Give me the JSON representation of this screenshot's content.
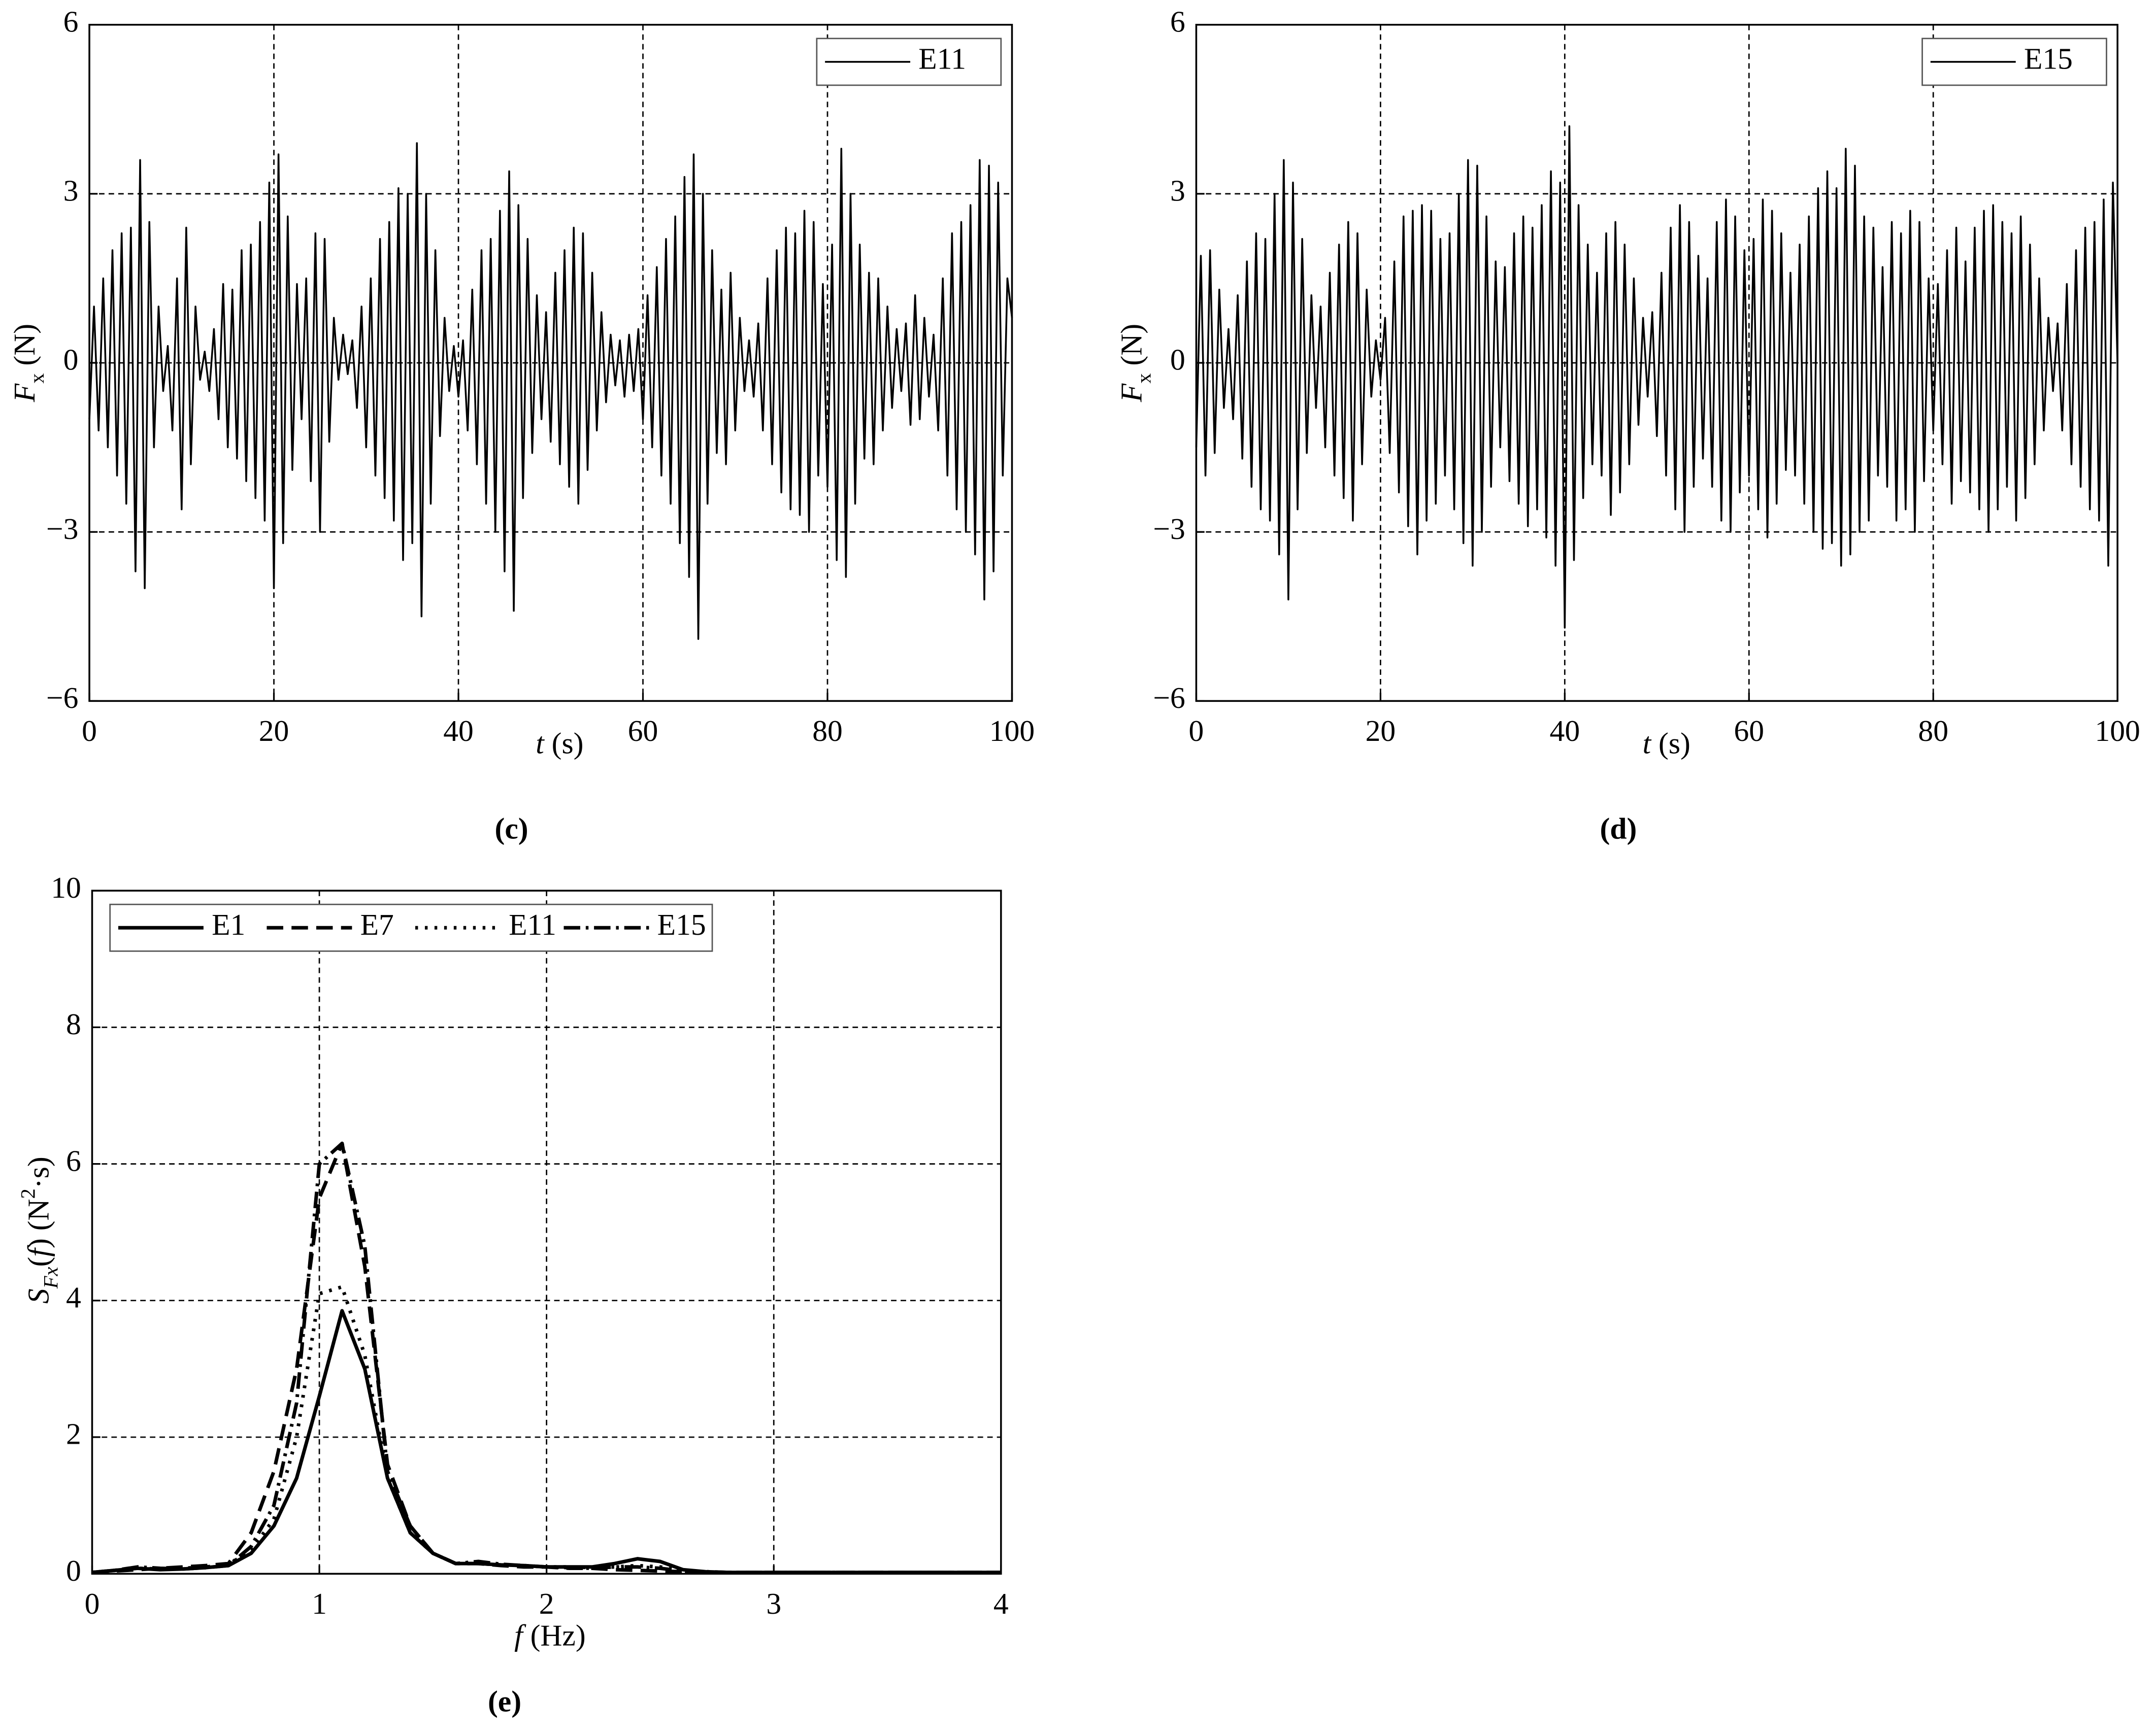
{
  "chart_data": [
    {
      "type": "line",
      "label": "(c)",
      "xlabel": [
        "t",
        " (s)"
      ],
      "ylabel": [
        "F",
        "x",
        " (N)"
      ],
      "xlim": [
        0,
        100
      ],
      "ylim": [
        -6,
        6
      ],
      "xticks": [
        0,
        20,
        40,
        60,
        80,
        100
      ],
      "yticks": [
        {
          "value": -6,
          "label": "−6"
        },
        {
          "value": -3,
          "label": "−3"
        },
        0,
        3,
        6
      ],
      "grid": true,
      "legend": "upper right",
      "x": [
        0,
        0.5,
        1,
        1.5,
        2,
        2.5,
        3,
        3.5,
        4,
        4.5,
        5,
        5.5,
        6,
        6.5,
        7,
        7.5,
        8,
        8.5,
        9,
        9.5,
        10,
        10.5,
        11,
        11.5,
        12,
        12.5,
        13,
        13.5,
        14,
        14.5,
        15,
        15.5,
        16,
        16.5,
        17,
        17.5,
        18,
        18.5,
        19,
        19.5,
        20,
        20.5,
        21,
        21.5,
        22,
        22.5,
        23,
        23.5,
        24,
        24.5,
        25,
        25.5,
        26,
        26.5,
        27,
        27.5,
        28,
        28.5,
        29,
        29.5,
        30,
        30.5,
        31,
        31.5,
        32,
        32.5,
        33,
        33.5,
        34,
        34.5,
        35,
        35.5,
        36,
        36.5,
        37,
        37.5,
        38,
        38.5,
        39,
        39.5,
        40,
        40.5,
        41,
        41.5,
        42,
        42.5,
        43,
        43.5,
        44,
        44.5,
        45,
        45.5,
        46,
        46.5,
        47,
        47.5,
        48,
        48.5,
        49,
        49.5,
        50,
        50.5,
        51,
        51.5,
        52,
        52.5,
        53,
        53.5,
        54,
        54.5,
        55,
        55.5,
        56,
        56.5,
        57,
        57.5,
        58,
        58.5,
        59,
        59.5,
        60,
        60.5,
        61,
        61.5,
        62,
        62.5,
        63,
        63.5,
        64,
        64.5,
        65,
        65.5,
        66,
        66.5,
        67,
        67.5,
        68,
        68.5,
        69,
        69.5,
        70,
        70.5,
        71,
        71.5,
        72,
        72.5,
        73,
        73.5,
        74,
        74.5,
        75,
        75.5,
        76,
        76.5,
        77,
        77.5,
        78,
        78.5,
        79,
        79.5,
        80,
        80.5,
        81,
        81.5,
        82,
        82.5,
        83,
        83.5,
        84,
        84.5,
        85,
        85.5,
        86,
        86.5,
        87,
        87.5,
        88,
        88.5,
        89,
        89.5,
        90,
        90.5,
        91,
        91.5,
        92,
        92.5,
        93,
        93.5,
        94,
        94.5,
        95,
        95.5,
        96,
        96.5,
        97,
        97.5,
        98,
        98.5,
        99,
        99.5,
        100
      ],
      "series": [
        {
          "name": "E11",
          "color": "#000000",
          "linestyle": "solid",
          "values": [
            -1,
            1,
            -1.2,
            1.5,
            -1.5,
            2,
            -2,
            2.3,
            -2.5,
            2.4,
            -3.7,
            3.6,
            -4,
            2.5,
            -1.5,
            1,
            -0.5,
            0.3,
            -1.2,
            1.5,
            -2.6,
            2.4,
            -1.8,
            1,
            -0.3,
            0.2,
            -0.5,
            0.6,
            -1,
            1.4,
            -1.5,
            1.3,
            -1.7,
            2,
            -2.1,
            2.1,
            -2.4,
            2.5,
            -2.8,
            3.2,
            -4,
            3.7,
            -3.2,
            2.6,
            -1.9,
            1.4,
            -1,
            1.5,
            -2.1,
            2.3,
            -3,
            2.2,
            -1.4,
            0.8,
            -0.3,
            0.5,
            -0.2,
            0.4,
            -0.8,
            1,
            -1.5,
            1.5,
            -2,
            2.2,
            -2.4,
            2.5,
            -2.8,
            3.1,
            -3.5,
            3,
            -3.2,
            3.9,
            -4.5,
            3,
            -2.5,
            2,
            -1.3,
            0.8,
            -0.5,
            0.3,
            -0.6,
            0.4,
            -1.2,
            1.3,
            -1.8,
            2,
            -2.5,
            2.2,
            -3,
            2.7,
            -3.7,
            3.4,
            -4.4,
            2.8,
            -2.4,
            2.2,
            -1.6,
            1.2,
            -1,
            0.9,
            -1.4,
            1.6,
            -1.8,
            2,
            -2.2,
            2.4,
            -2.5,
            2.3,
            -1.9,
            1.6,
            -1.2,
            0.9,
            -0.7,
            0.5,
            -0.4,
            0.4,
            -0.6,
            0.5,
            -0.5,
            0.6,
            -1,
            1.2,
            -1.5,
            1.7,
            -2,
            2.2,
            -2.5,
            2.6,
            -3.2,
            3.3,
            -3.8,
            3.7,
            -4.9,
            3,
            -2.5,
            2,
            -1.6,
            1.3,
            -1.8,
            1.6,
            -1.2,
            0.8,
            -0.5,
            0.4,
            -0.6,
            0.7,
            -1.2,
            1.5,
            -1.8,
            2,
            -2.3,
            2.4,
            -2.6,
            2.3,
            -2.7,
            2.7,
            -3,
            2.5,
            -2,
            1.4,
            -2.2,
            2.1,
            -3.5,
            3.8,
            -3.8,
            3,
            -2.5,
            2.1,
            -1.7,
            1.6,
            -1.8,
            1.5,
            -1.2,
            1,
            -0.8,
            0.6,
            -0.5,
            0.7,
            -1.1,
            1.2,
            -1,
            0.8,
            -0.6,
            0.5,
            -1.2,
            1.5,
            -2,
            2.3,
            -2.6,
            2.5,
            -3,
            2.8,
            -3.4,
            3.6,
            -4.2,
            3.5,
            -3.7,
            3.2,
            -2,
            1.5,
            0.8
          ]
        }
      ]
    },
    {
      "type": "line",
      "label": "(d)",
      "xlabel": [
        "t",
        " (s)"
      ],
      "ylabel": [
        "F",
        "x",
        " (N)"
      ],
      "xlim": [
        0,
        100
      ],
      "ylim": [
        -6,
        6
      ],
      "xticks": [
        0,
        20,
        40,
        60,
        80,
        100
      ],
      "yticks": [
        {
          "value": -6,
          "label": "−6"
        },
        {
          "value": -3,
          "label": "−3"
        },
        0,
        3,
        6
      ],
      "grid": true,
      "legend": "upper right",
      "x": [
        0,
        0.5,
        1,
        1.5,
        2,
        2.5,
        3,
        3.5,
        4,
        4.5,
        5,
        5.5,
        6,
        6.5,
        7,
        7.5,
        8,
        8.5,
        9,
        9.5,
        10,
        10.5,
        11,
        11.5,
        12,
        12.5,
        13,
        13.5,
        14,
        14.5,
        15,
        15.5,
        16,
        16.5,
        17,
        17.5,
        18,
        18.5,
        19,
        19.5,
        20,
        20.5,
        21,
        21.5,
        22,
        22.5,
        23,
        23.5,
        24,
        24.5,
        25,
        25.5,
        26,
        26.5,
        27,
        27.5,
        28,
        28.5,
        29,
        29.5,
        30,
        30.5,
        31,
        31.5,
        32,
        32.5,
        33,
        33.5,
        34,
        34.5,
        35,
        35.5,
        36,
        36.5,
        37,
        37.5,
        38,
        38.5,
        39,
        39.5,
        40,
        40.5,
        41,
        41.5,
        42,
        42.5,
        43,
        43.5,
        44,
        44.5,
        45,
        45.5,
        46,
        46.5,
        47,
        47.5,
        48,
        48.5,
        49,
        49.5,
        50,
        50.5,
        51,
        51.5,
        52,
        52.5,
        53,
        53.5,
        54,
        54.5,
        55,
        55.5,
        56,
        56.5,
        57,
        57.5,
        58,
        58.5,
        59,
        59.5,
        60,
        60.5,
        61,
        61.5,
        62,
        62.5,
        63,
        63.5,
        64,
        64.5,
        65,
        65.5,
        66,
        66.5,
        67,
        67.5,
        68,
        68.5,
        69,
        69.5,
        70,
        70.5,
        71,
        71.5,
        72,
        72.5,
        73,
        73.5,
        74,
        74.5,
        75,
        75.5,
        76,
        76.5,
        77,
        77.5,
        78,
        78.5,
        79,
        79.5,
        80,
        80.5,
        81,
        81.5,
        82,
        82.5,
        83,
        83.5,
        84,
        84.5,
        85,
        85.5,
        86,
        86.5,
        87,
        87.5,
        88,
        88.5,
        89,
        89.5,
        90,
        90.5,
        91,
        91.5,
        92,
        92.5,
        93,
        93.5,
        94,
        94.5,
        95,
        95.5,
        96,
        96.5,
        97,
        97.5,
        98,
        98.5,
        99,
        99.5,
        100
      ],
      "series": [
        {
          "name": "E15",
          "color": "#000000",
          "linestyle": "solid",
          "values": [
            -1.5,
            1.9,
            -2,
            2,
            -1.6,
            1.3,
            -0.8,
            0.6,
            -1,
            1.2,
            -1.7,
            1.8,
            -2.2,
            2.3,
            -2.6,
            2.2,
            -2.8,
            3,
            -3.4,
            3.6,
            -4.2,
            3.2,
            -2.6,
            2.2,
            -1.6,
            1.2,
            -0.8,
            1,
            -1.5,
            1.6,
            -2,
            2.1,
            -2.4,
            2.5,
            -2.8,
            2.3,
            -1.8,
            1.3,
            -0.6,
            0.4,
            -0.3,
            0.8,
            -1.6,
            1.8,
            -2.3,
            2.6,
            -2.9,
            2.7,
            -3.4,
            2.8,
            -2.8,
            2.7,
            -2.5,
            2.2,
            -2,
            2.3,
            -2.6,
            3,
            -3.2,
            3.6,
            -3.6,
            3.5,
            -3,
            2.6,
            -2.2,
            1.8,
            -1.5,
            1.7,
            -2.1,
            2.3,
            -2.5,
            2.6,
            -2.9,
            2.4,
            -2.6,
            2.8,
            -3.1,
            3.4,
            -3.6,
            3.2,
            -4.7,
            4.2,
            -3.5,
            2.8,
            -2.4,
            2.1,
            -1.8,
            1.6,
            -2,
            2.3,
            -2.7,
            2.5,
            -2.3,
            2.1,
            -1.8,
            1.5,
            -1.1,
            0.8,
            -0.6,
            0.9,
            -1.3,
            1.6,
            -2,
            2.4,
            -2.6,
            2.8,
            -3,
            2.5,
            -2.2,
            1.9,
            -1.7,
            1.5,
            -2.2,
            2.5,
            -2.8,
            2.9,
            -3,
            2.6,
            -2.3,
            2,
            -2,
            2.2,
            -2.6,
            2.9,
            -3.1,
            2.7,
            -2.5,
            2.3,
            -1.9,
            1.6,
            -2,
            2.1,
            -2.5,
            2.6,
            -3,
            3.1,
            -3.3,
            3.4,
            -3.2,
            3.1,
            -3.6,
            3.8,
            -3.4,
            3.5,
            -3,
            2.6,
            -2.8,
            2.4,
            -2,
            1.7,
            -2.2,
            2.5,
            -2.8,
            2.3,
            -2.6,
            2.7,
            -3,
            2.5,
            -2.1,
            1.5,
            -1.2,
            1.4,
            -1.8,
            2,
            -2.5,
            2.4,
            -2.1,
            1.8,
            -2.3,
            2.4,
            -2.6,
            2.7,
            -3,
            2.8,
            -2.6,
            2.5,
            -2.2,
            2.3,
            -2.8,
            2.6,
            -2.4,
            2.1,
            -1.8,
            1.5,
            -1.2,
            0.8,
            -0.5,
            0.7,
            -1.2,
            1.4,
            -1.8,
            2,
            -2.2,
            2.4,
            -2.6,
            2.5,
            -2.8,
            2.9,
            -3.6,
            3.2,
            0
          ]
        }
      ]
    },
    {
      "type": "line",
      "label": "(e)",
      "xlabel": [
        "f",
        " (Hz)"
      ],
      "ylabel": [
        "S",
        "Fx",
        "(",
        "f",
        ") (N",
        "2",
        "·s)"
      ],
      "xlim": [
        0,
        4
      ],
      "ylim": [
        0,
        10
      ],
      "xticks": [
        0,
        1,
        2,
        3,
        4
      ],
      "yticks": [
        0,
        2,
        4,
        6,
        8,
        10
      ],
      "grid": true,
      "legend": "upper left",
      "x": [
        0,
        0.1,
        0.2,
        0.3,
        0.4,
        0.5,
        0.6,
        0.7,
        0.8,
        0.9,
        1,
        1.1,
        1.2,
        1.3,
        1.4,
        1.5,
        1.6,
        1.7,
        1.8,
        1.9,
        2,
        2.1,
        2.2,
        2.3,
        2.4,
        2.5,
        2.6,
        2.7,
        2.8,
        2.9,
        3,
        3.1,
        3.2,
        3.3,
        3.4,
        3.5,
        3.6,
        3.7,
        3.8,
        3.9,
        4
      ],
      "series": [
        {
          "name": "E1",
          "color": "#000000",
          "linestyle": "solid",
          "values": [
            0.02,
            0.05,
            0.08,
            0.06,
            0.07,
            0.09,
            0.12,
            0.3,
            0.7,
            1.4,
            2.6,
            3.85,
            3.0,
            1.4,
            0.6,
            0.3,
            0.15,
            0.15,
            0.13,
            0.12,
            0.1,
            0.1,
            0.1,
            0.15,
            0.22,
            0.18,
            0.06,
            0.03,
            0.02,
            0.02,
            0.02,
            0.02,
            0.02,
            0.02,
            0.02,
            0.02,
            0.02,
            0.02,
            0.02,
            0.02,
            0.02
          ]
        },
        {
          "name": "E7",
          "color": "#000000",
          "linestyle": "dashed",
          "values": [
            0.02,
            0.04,
            0.06,
            0.08,
            0.1,
            0.12,
            0.15,
            0.6,
            1.5,
            3.0,
            5.5,
            6.3,
            4.5,
            1.6,
            0.7,
            0.3,
            0.15,
            0.15,
            0.12,
            0.1,
            0.1,
            0.08,
            0.08,
            0.06,
            0.05,
            0.04,
            0.03,
            0.02,
            0.02,
            0.02,
            0.02,
            0.02,
            0.02,
            0.02,
            0.02,
            0.02,
            0.02,
            0.02,
            0.02,
            0.02,
            0.02
          ]
        },
        {
          "name": "E11",
          "color": "#000000",
          "linestyle": "dotted",
          "values": [
            0.02,
            0.05,
            0.08,
            0.07,
            0.08,
            0.1,
            0.13,
            0.35,
            0.8,
            2.0,
            4.1,
            4.2,
            3.2,
            1.4,
            0.6,
            0.3,
            0.15,
            0.15,
            0.13,
            0.12,
            0.1,
            0.1,
            0.09,
            0.1,
            0.12,
            0.1,
            0.05,
            0.03,
            0.02,
            0.02,
            0.02,
            0.02,
            0.02,
            0.02,
            0.02,
            0.02,
            0.02,
            0.02,
            0.02,
            0.02,
            0.02
          ]
        },
        {
          "name": "E15",
          "color": "#000000",
          "linestyle": "dashdot",
          "values": [
            0.02,
            0.05,
            0.1,
            0.08,
            0.07,
            0.09,
            0.12,
            0.4,
            1.0,
            2.5,
            6.0,
            6.3,
            4.8,
            1.5,
            0.7,
            0.3,
            0.15,
            0.18,
            0.14,
            0.12,
            0.1,
            0.09,
            0.08,
            0.1,
            0.1,
            0.08,
            0.04,
            0.03,
            0.02,
            0.02,
            0.02,
            0.02,
            0.02,
            0.02,
            0.02,
            0.02,
            0.02,
            0.02,
            0.02,
            0.02,
            0.02
          ]
        }
      ]
    }
  ]
}
